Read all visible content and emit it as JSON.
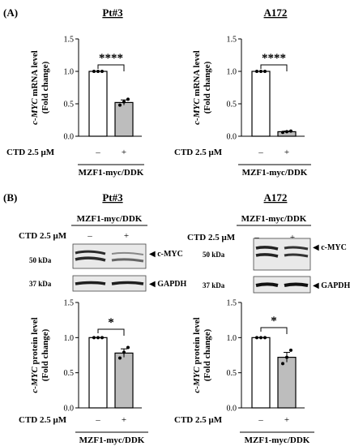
{
  "figure": {
    "panel_a_label": "(A)",
    "panel_b_label": "(B)",
    "panels": [
      {
        "title": "Pt#3"
      },
      {
        "title": "A172"
      },
      {
        "title": "Pt#3"
      },
      {
        "title": "A172"
      }
    ],
    "treatment_label": "CTD 2.5 μM",
    "construct_label": "MZF1-myc/DDK",
    "minus": "–",
    "plus": "+",
    "mw_50": "50 kDa",
    "mw_37": "37 kDa",
    "band_myc": "◀ c-MYC",
    "band_gapdh": "◀ GAPDH"
  },
  "chart_data": [
    {
      "type": "bar",
      "title": "Pt#3",
      "ylabel_italic": "c-MYC",
      "ylabel_rest": " mRNA level",
      "ylabel2": "(Fold change)",
      "categories": [
        "–",
        "+"
      ],
      "values": [
        1.0,
        0.52
      ],
      "errors": [
        0.0,
        0.04
      ],
      "points": [
        [
          1.0,
          1.0,
          1.0
        ],
        [
          0.48,
          0.53,
          0.57
        ]
      ],
      "bar_fills": [
        "#ffffff",
        "#bdbdbd"
      ],
      "ylim": [
        0,
        1.5
      ],
      "yticks": [
        "0.0",
        "0.5",
        "1.0",
        "1.5"
      ],
      "significance": "****",
      "xlabel": "CTD 2.5 μM",
      "group": "MZF1-myc/DDK"
    },
    {
      "type": "bar",
      "title": "A172",
      "ylabel_italic": "c-MYC",
      "ylabel_rest": " mRNA level",
      "ylabel2": "(Fold change)",
      "categories": [
        "–",
        "+"
      ],
      "values": [
        1.0,
        0.07
      ],
      "errors": [
        0.0,
        0.01
      ],
      "points": [
        [
          1.0,
          1.0,
          1.0
        ],
        [
          0.06,
          0.07,
          0.08
        ]
      ],
      "bar_fills": [
        "#ffffff",
        "#bdbdbd"
      ],
      "ylim": [
        0,
        1.5
      ],
      "yticks": [
        "0.0",
        "0.5",
        "1.0",
        "1.5"
      ],
      "significance": "****",
      "xlabel": "CTD 2.5 μM",
      "group": "MZF1-myc/DDK"
    },
    {
      "type": "bar",
      "title": "Pt#3",
      "ylabel_italic": "c-MYC",
      "ylabel_rest": " protein level",
      "ylabel2": "(Fold change)",
      "categories": [
        "–",
        "+"
      ],
      "values": [
        1.0,
        0.78
      ],
      "errors": [
        0.0,
        0.06
      ],
      "points": [
        [
          1.0,
          1.0,
          1.0
        ],
        [
          0.71,
          0.79,
          0.86
        ]
      ],
      "bar_fills": [
        "#ffffff",
        "#bdbdbd"
      ],
      "ylim": [
        0,
        1.5
      ],
      "yticks": [
        "0.0",
        "0.5",
        "1.0",
        "1.5"
      ],
      "significance": "*",
      "xlabel": "CTD 2.5 μM",
      "group": "MZF1-myc/DDK"
    },
    {
      "type": "bar",
      "title": "A172",
      "ylabel_italic": "c-MYC",
      "ylabel_rest": " protein level",
      "ylabel2": "(Fold change)",
      "categories": [
        "–",
        "+"
      ],
      "values": [
        1.0,
        0.72
      ],
      "errors": [
        0.0,
        0.07
      ],
      "points": [
        [
          1.0,
          1.0,
          1.0
        ],
        [
          0.63,
          0.72,
          0.82
        ]
      ],
      "bar_fills": [
        "#ffffff",
        "#bdbdbd"
      ],
      "ylim": [
        0,
        1.5
      ],
      "yticks": [
        "0.0",
        "0.5",
        "1.0",
        "1.5"
      ],
      "significance": "*",
      "xlabel": "CTD 2.5 μM",
      "group": "MZF1-myc/DDK"
    }
  ]
}
